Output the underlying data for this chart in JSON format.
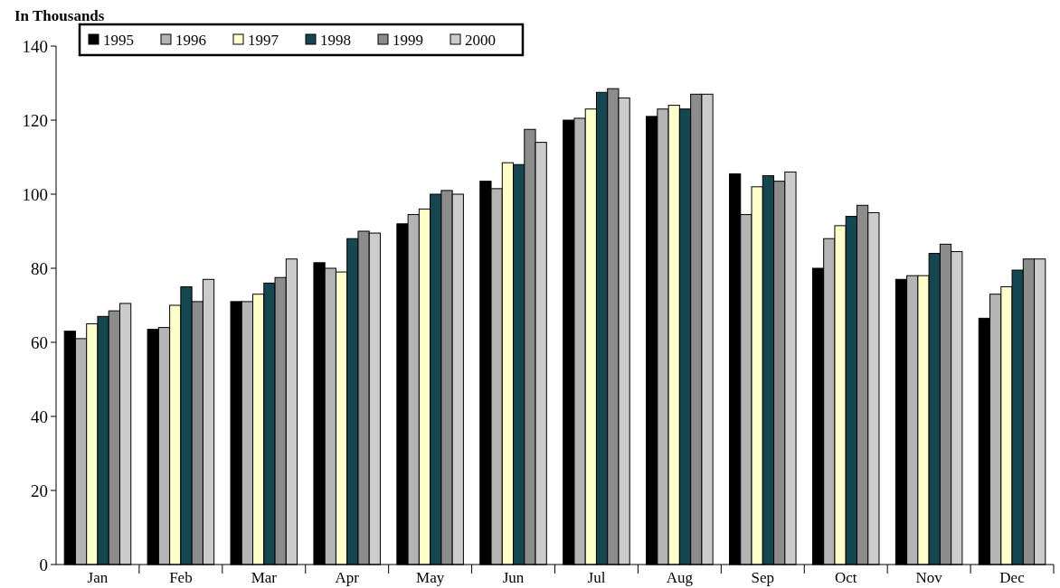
{
  "chart_data": {
    "type": "bar",
    "title": "In Thousands",
    "categories": [
      "Jan",
      "Feb",
      "Mar",
      "Apr",
      "May",
      "Jun",
      "Jul",
      "Aug",
      "Sep",
      "Oct",
      "Nov",
      "Dec"
    ],
    "series": [
      {
        "name": "1995",
        "color": "#000000",
        "values": [
          63,
          63.5,
          71,
          81.5,
          92,
          103.5,
          120,
          121,
          105.5,
          80,
          77,
          66.5
        ]
      },
      {
        "name": "1996",
        "color": "#b4b4b4",
        "values": [
          61,
          64,
          71,
          80,
          94.5,
          101.5,
          120.5,
          123,
          94.5,
          88,
          78,
          73
        ]
      },
      {
        "name": "1997",
        "color": "#ffffcc",
        "values": [
          65,
          70,
          73,
          79,
          96,
          108.5,
          123,
          124,
          102,
          91.5,
          78,
          75
        ]
      },
      {
        "name": "1998",
        "color": "#164650",
        "values": [
          67,
          75,
          76,
          88,
          100,
          108,
          127.5,
          123,
          105,
          94,
          84,
          79.5
        ]
      },
      {
        "name": "1999",
        "color": "#8c8c8c",
        "values": [
          68.5,
          71,
          77.5,
          90,
          101,
          117.5,
          128.5,
          127,
          103.5,
          97,
          86.5,
          82.5
        ]
      },
      {
        "name": "2000",
        "color": "#cccccc",
        "values": [
          70.5,
          77,
          82.5,
          89.5,
          100,
          114,
          126,
          127,
          106,
          95,
          84.5,
          82.5
        ]
      }
    ],
    "ylim": [
      0,
      140
    ],
    "yticks": [
      0,
      20,
      40,
      60,
      80,
      100,
      120,
      140
    ],
    "grid": false,
    "legend": "top left"
  }
}
